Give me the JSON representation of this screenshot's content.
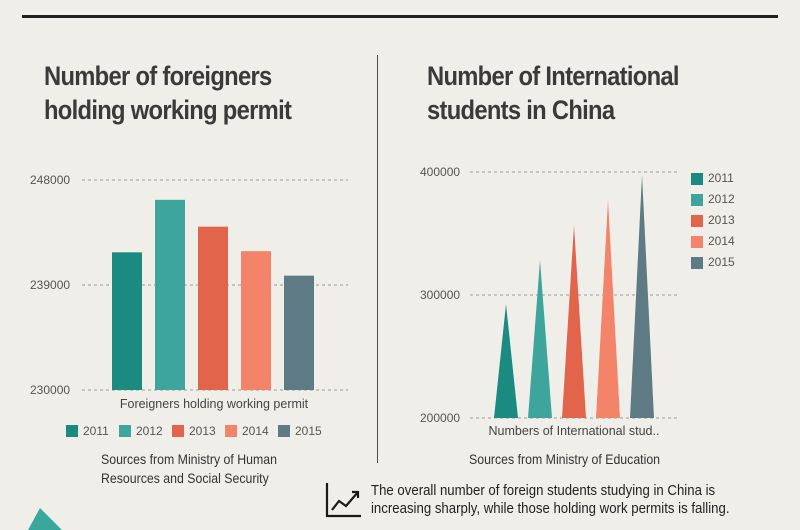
{
  "colors": {
    "2011": "#1b8a80",
    "2012": "#3da59b",
    "2013": "#e2644a",
    "2014": "#f3846a",
    "2015": "#5e7b85"
  },
  "icons": {
    "annotation": "trend-line-icon"
  },
  "chart_data": [
    {
      "type": "bar",
      "title": "Number of foreigners holding working permit",
      "xlabel": "Foreigners holding working permit",
      "category": "Foreigners holding working permit",
      "ylim": [
        230000,
        248000
      ],
      "yticks": [
        230000,
        239000,
        248000
      ],
      "yticklabels": [
        "230000",
        "239000",
        "248000"
      ],
      "series": [
        {
          "name": "2011",
          "value": 241800
        },
        {
          "name": "2012",
          "value": 246300
        },
        {
          "name": "2013",
          "value": 244000
        },
        {
          "name": "2014",
          "value": 241900
        },
        {
          "name": "2015",
          "value": 239800
        }
      ],
      "grid": true,
      "legend": "bottom",
      "source": "Sources from Ministry of Human Resources and Social Security"
    },
    {
      "type": "bar",
      "title": "Number of International students in China",
      "xlabel": "Numbers of International stud..",
      "category": "Numbers of International stud..",
      "ylim": [
        200000,
        400000
      ],
      "yticks": [
        200000,
        300000,
        400000
      ],
      "yticklabels": [
        "200000",
        "300000",
        "400000"
      ],
      "series": [
        {
          "name": "2011",
          "value": 292600
        },
        {
          "name": "2012",
          "value": 328300
        },
        {
          "name": "2013",
          "value": 356500
        },
        {
          "name": "2014",
          "value": 377100
        },
        {
          "name": "2015",
          "value": 397600
        }
      ],
      "grid": true,
      "legend": "right",
      "source": "Sources from Ministry of Education"
    }
  ],
  "annotation": "The overall number of foreign students studying in China is increasing sharply, while those holding work permits is falling."
}
